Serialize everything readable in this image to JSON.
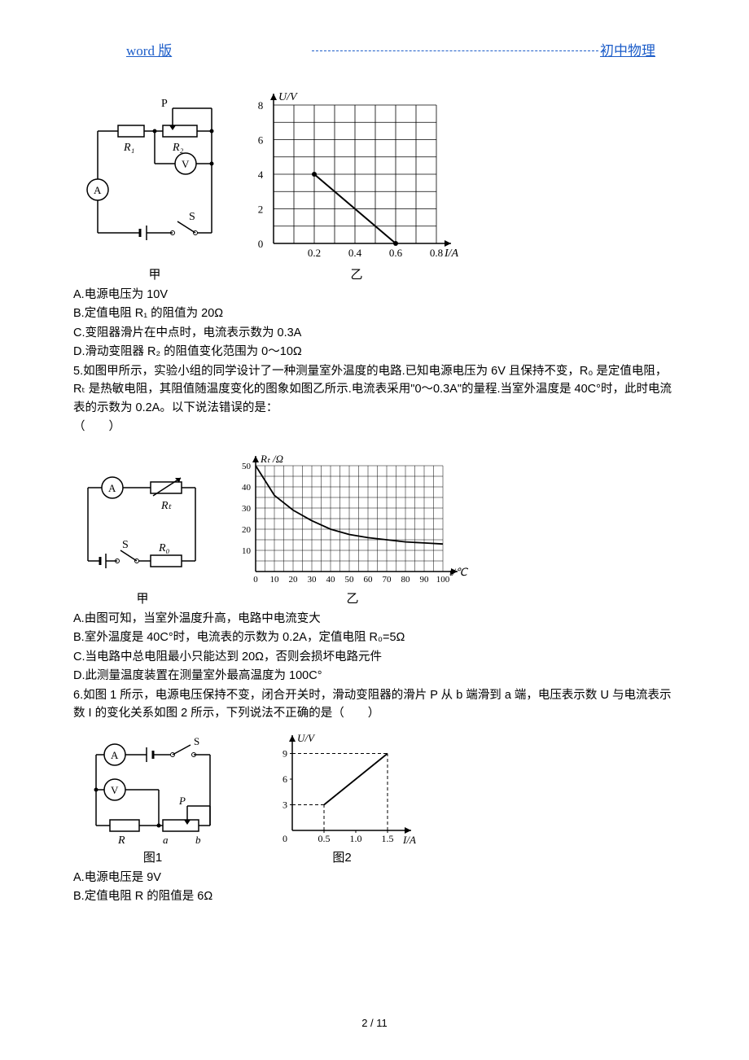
{
  "header": {
    "left": "word 版",
    "right": "初中物理"
  },
  "page_number": "2 / 11",
  "q4": {
    "circuit": {
      "P": "P",
      "R1": "R₁",
      "R2": "R₂",
      "V": "V",
      "A": "A",
      "S": "S",
      "caption": "甲"
    },
    "graph": {
      "caption": "乙",
      "ylabel": "U/V",
      "xlabel": "I/A",
      "ymax": 8,
      "ystep": 2,
      "yticks": [
        "0",
        "2",
        "4",
        "6",
        "8"
      ],
      "xmax": 0.8,
      "xstep": 0.2,
      "xticks": [
        "0.2",
        "0.4",
        "0.6",
        "0.8"
      ],
      "line": {
        "x1": 0.2,
        "y1": 4,
        "x2": 0.6,
        "y2": 0
      },
      "grid_color": "#000",
      "bg": "#fff",
      "line_color": "#000"
    },
    "optA": "A.电源电压为 10V",
    "optB": "B.定值电阻 R₁ 的阻值为 20Ω",
    "optC": "C.变阻器滑片在中点时，电流表示数为 0.3A",
    "optD": "D.滑动变阻器 R₂ 的阻值变化范围为 0～10Ω"
  },
  "q5": {
    "stem": "5.如图甲所示，实验小组的同学设计了一种测量室外温度的电路.已知电源电压为 6V 且保持不变，R₀ 是定值电阻，Rₜ 是热敏电阻，其阻值随温度变化的图象如图乙所示.电流表采用\"0～0.3A\"的量程.当室外温度是 40C°时，此时电流表的示数为 0.2A。以下说法错误的是：",
    "paren": "（　　）",
    "circuit": {
      "A": "A",
      "Rt": "Rₜ",
      "S": "S",
      "R0": "R₀",
      "caption": "甲"
    },
    "graph": {
      "caption": "乙",
      "ylabel": "Rₜ /Ω",
      "xlabel": "t/℃",
      "ymax": 50,
      "ystep": 10,
      "yticks": [
        "10",
        "20",
        "30",
        "40",
        "50"
      ],
      "xmax": 100,
      "xstep": 10,
      "xticks": [
        "0",
        "10",
        "20",
        "30",
        "40",
        "50",
        "60",
        "70",
        "80",
        "90",
        "100"
      ],
      "curve": [
        [
          0,
          50
        ],
        [
          10,
          36
        ],
        [
          20,
          29
        ],
        [
          30,
          24
        ],
        [
          40,
          20
        ],
        [
          50,
          17.5
        ],
        [
          60,
          16
        ],
        [
          70,
          15
        ],
        [
          80,
          14
        ],
        [
          90,
          13.5
        ],
        [
          100,
          13
        ]
      ],
      "grid_color": "#000",
      "line_color": "#000"
    },
    "optA": "A.由图可知，当室外温度升高，电路中电流变大",
    "optB": "B.室外温度是 40C°时，电流表的示数为 0.2A，定值电阻 R₀=5Ω",
    "optC": "C.当电路中总电阻最小只能达到 20Ω，否则会损坏电路元件",
    "optD": "D.此测量温度装置在测量室外最高温度为 100C°"
  },
  "q6": {
    "stem": "6.如图 1 所示，电源电压保持不变，闭合开关时，滑动变阻器的滑片 P 从 b 端滑到 a 端，电压表示数 U 与电流表示数 I 的变化关系如图 2 所示，下列说法不正确的是（　　）",
    "circuit": {
      "A": "A",
      "V": "V",
      "S": "S",
      "P": "P",
      "R": "R",
      "a": "a",
      "b": "b",
      "caption": "图1"
    },
    "graph": {
      "caption": "图2",
      "ylabel": "U/V",
      "xlabel": "I/A",
      "yticks": [
        "3",
        "6",
        "9"
      ],
      "yvals": [
        3,
        6,
        9
      ],
      "xticks": [
        "0.5",
        "1.0",
        "1.5"
      ],
      "xvals": [
        0.5,
        1.0,
        1.5
      ],
      "line": {
        "x1": 0.5,
        "y1": 3,
        "x2": 1.5,
        "y2": 9
      },
      "line_color": "#000"
    },
    "optA": "A.电源电压是 9V",
    "optB": "B.定值电阻 R 的阻值是 6Ω"
  }
}
